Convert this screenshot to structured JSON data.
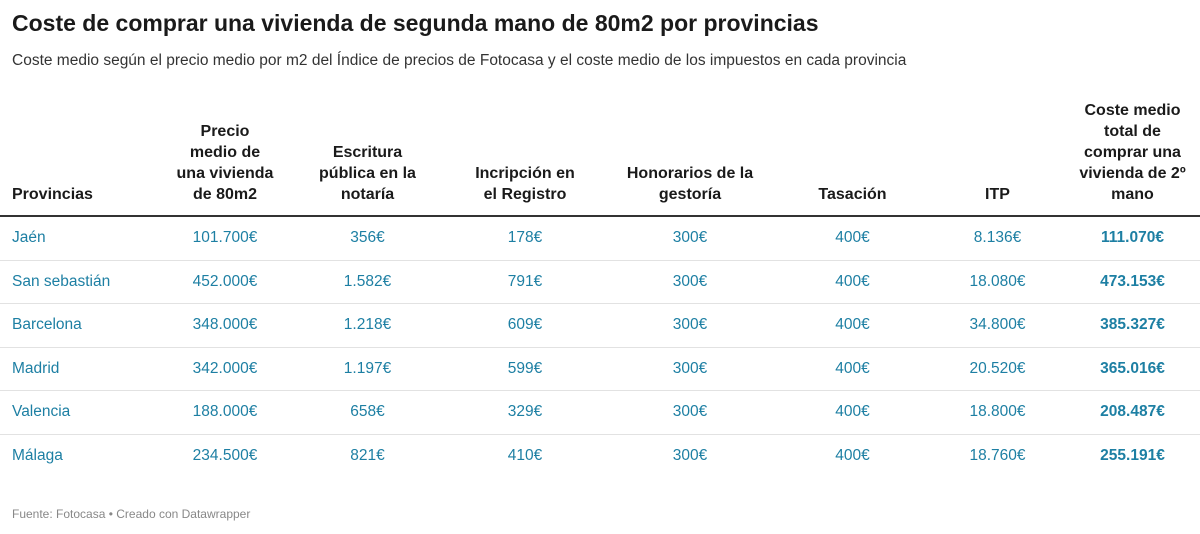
{
  "title": "Coste de comprar una vivienda de segunda mano de 80m2 por provincias",
  "subtitle": "Coste medio según el precio medio por m2 del Índice de precios de Fotocasa y el coste medio de los impuestos en cada provincia",
  "table": {
    "headers": [
      "Provincias",
      "Precio medio de una vivienda de 80m2",
      "Escritura pública en la notaría",
      "Incripción en el Registro",
      "Honorarios de la gestoría",
      "Tasación",
      "ITP",
      "Coste medio total de comprar una vivienda de 2º mano"
    ],
    "rows": [
      [
        "Jaén",
        "101.700€",
        "356€",
        "178€",
        "300€",
        "400€",
        "8.136€",
        "111.070€"
      ],
      [
        "San sebastián",
        "452.000€",
        "1.582€",
        "791€",
        "300€",
        "400€",
        "18.080€",
        "473.153€"
      ],
      [
        "Barcelona",
        "348.000€",
        "1.218€",
        "609€",
        "300€",
        "400€",
        "34.800€",
        "385.327€"
      ],
      [
        "Madrid",
        "342.000€",
        "1.197€",
        "599€",
        "300€",
        "400€",
        "20.520€",
        "365.016€"
      ],
      [
        "Valencia",
        "188.000€",
        "658€",
        "329€",
        "300€",
        "400€",
        "18.800€",
        "208.487€"
      ],
      [
        "Málaga",
        "234.500€",
        "821€",
        "410€",
        "300€",
        "400€",
        "18.760€",
        "255.191€"
      ]
    ]
  },
  "footer": "Fuente: Fotocasa • Creado con Datawrapper"
}
